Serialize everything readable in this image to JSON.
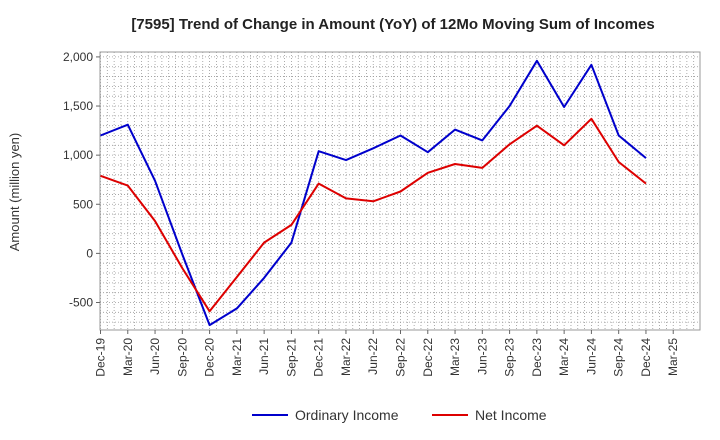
{
  "chart_data": {
    "type": "line",
    "title": "[7595]  Trend of Change in Amount (YoY) of 12Mo Moving Sum of Incomes",
    "xlabel": "",
    "ylabel": "Amount (million yen)",
    "ylim": [
      -780,
      2050
    ],
    "yticks": [
      -500,
      0,
      500,
      1000,
      1500,
      2000
    ],
    "ytick_labels": [
      "-500",
      "0",
      "500",
      "1,000",
      "1,500",
      "2,000"
    ],
    "categories": [
      "Dec-19",
      "Mar-20",
      "Jun-20",
      "Sep-20",
      "Dec-20",
      "Mar-21",
      "Jun-21",
      "Sep-21",
      "Dec-21",
      "Mar-22",
      "Jun-22",
      "Sep-22",
      "Dec-22",
      "Mar-23",
      "Jun-23",
      "Sep-23",
      "Dec-23",
      "Mar-24",
      "Jun-24",
      "Sep-24",
      "Dec-24",
      "Mar-25"
    ],
    "grid": true,
    "legend_position": "bottom",
    "series": [
      {
        "name": "Ordinary Income",
        "color": "#0000cc",
        "values": [
          1200,
          1310,
          740,
          -10,
          -730,
          -560,
          -250,
          110,
          1040,
          950,
          1070,
          1200,
          1030,
          1260,
          1150,
          1500,
          1960,
          1490,
          1920,
          1200,
          970,
          null
        ]
      },
      {
        "name": "Net Income",
        "color": "#dd0000",
        "values": [
          790,
          690,
          330,
          -150,
          -590,
          -240,
          110,
          290,
          710,
          560,
          530,
          630,
          820,
          910,
          870,
          1110,
          1300,
          1100,
          1370,
          930,
          710,
          null
        ]
      }
    ]
  }
}
